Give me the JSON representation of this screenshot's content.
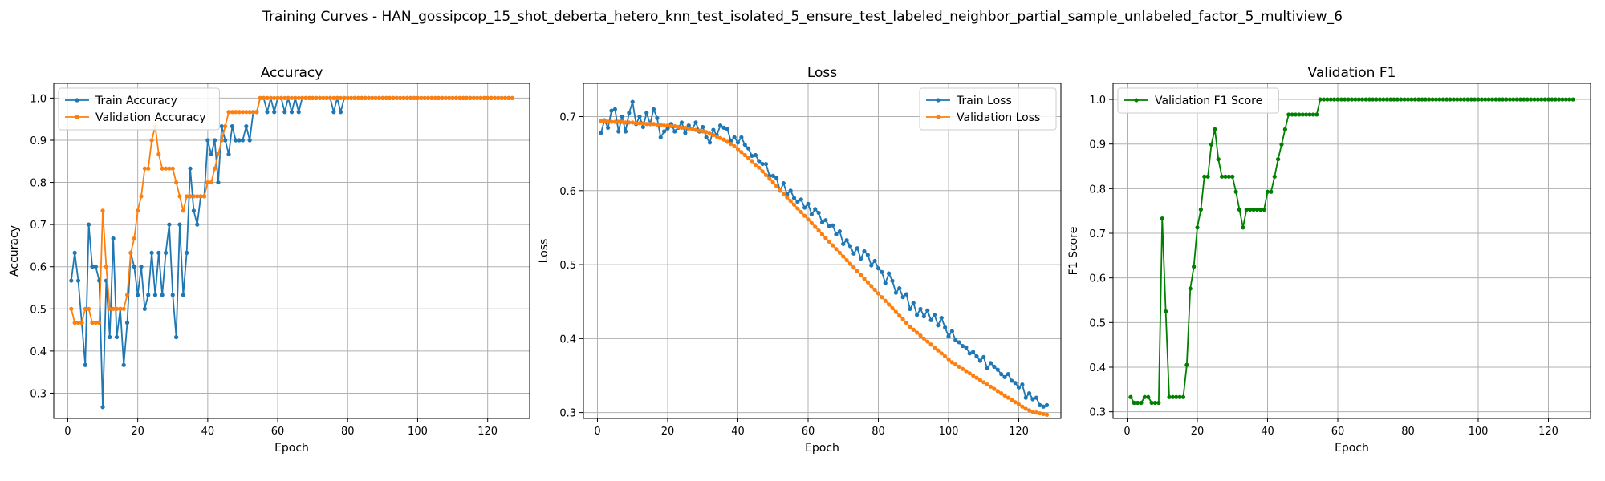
{
  "figure_title": "Training Curves - HAN_gossipcop_15_shot_deberta_hetero_knn_test_isolated_5_ensure_test_labeled_neighbor_partial_sample_unlabeled_factor_5_multiview_6",
  "colors": {
    "train": "#1f77b4",
    "validation": "#ff7f0e",
    "f1": "#008000",
    "grid": "#b0b0b0"
  },
  "chart_data": [
    {
      "type": "line",
      "title": "Accuracy",
      "xlabel": "Epoch",
      "ylabel": "Accuracy",
      "xlim": [
        -4,
        132
      ],
      "ylim": [
        0.24,
        1.035
      ],
      "xticks": [
        0,
        20,
        40,
        60,
        80,
        100,
        120
      ],
      "yticks": [
        0.3,
        0.4,
        0.5,
        0.6,
        0.7,
        0.8,
        0.9,
        1.0
      ],
      "yfmt": 1,
      "grid": true,
      "legend_position": "upper-left",
      "series": [
        {
          "name": "Train Accuracy",
          "color": "#1f77b4",
          "x_start": 1,
          "values": [
            0.567,
            0.633,
            0.567,
            0.467,
            0.367,
            0.7,
            0.6,
            0.6,
            0.567,
            0.267,
            0.567,
            0.433,
            0.667,
            0.433,
            0.5,
            0.367,
            0.467,
            0.633,
            0.6,
            0.533,
            0.6,
            0.5,
            0.533,
            0.633,
            0.533,
            0.633,
            0.533,
            0.633,
            0.7,
            0.533,
            0.433,
            0.7,
            0.533,
            0.633,
            0.833,
            0.733,
            0.7,
            0.767,
            0.767,
            0.9,
            0.867,
            0.9,
            0.8,
            0.933,
            0.9,
            0.867,
            0.933,
            0.9,
            0.9,
            0.9,
            0.933,
            0.9,
            0.967,
            0.967,
            1.0,
            1.0,
            0.967,
            1.0,
            0.967,
            1.0,
            1.0,
            0.967,
            1.0,
            0.967,
            1.0,
            0.967,
            1.0,
            1.0,
            1.0,
            1.0,
            1.0,
            1.0,
            1.0,
            1.0,
            1.0,
            0.967,
            1.0,
            0.967,
            1.0,
            1.0,
            1.0,
            1.0,
            1.0,
            1.0,
            1.0,
            1.0,
            1.0,
            1.0,
            1.0,
            1.0,
            1.0,
            1.0,
            1.0,
            1.0,
            1.0,
            1.0,
            1.0,
            1.0,
            1.0,
            1.0,
            1.0,
            1.0,
            1.0,
            1.0,
            1.0,
            1.0,
            1.0,
            1.0,
            1.0,
            1.0,
            1.0,
            1.0,
            1.0,
            1.0,
            1.0,
            1.0,
            1.0,
            1.0,
            1.0,
            1.0,
            1.0,
            1.0,
            1.0,
            1.0,
            1.0,
            1.0,
            1.0
          ]
        },
        {
          "name": "Validation Accuracy",
          "color": "#ff7f0e",
          "x_start": 1,
          "values": [
            0.5,
            0.467,
            0.467,
            0.467,
            0.5,
            0.5,
            0.467,
            0.467,
            0.467,
            0.733,
            0.6,
            0.5,
            0.5,
            0.5,
            0.5,
            0.5,
            0.533,
            0.633,
            0.667,
            0.733,
            0.767,
            0.833,
            0.833,
            0.9,
            0.933,
            0.867,
            0.833,
            0.833,
            0.833,
            0.833,
            0.8,
            0.767,
            0.733,
            0.767,
            0.767,
            0.767,
            0.767,
            0.767,
            0.767,
            0.8,
            0.8,
            0.833,
            0.867,
            0.9,
            0.933,
            0.967,
            0.967,
            0.967,
            0.967,
            0.967,
            0.967,
            0.967,
            0.967,
            0.967,
            1.0,
            1.0,
            1.0,
            1.0,
            1.0,
            1.0,
            1.0,
            1.0,
            1.0,
            1.0,
            1.0,
            1.0,
            1.0,
            1.0,
            1.0,
            1.0,
            1.0,
            1.0,
            1.0,
            1.0,
            1.0,
            1.0,
            1.0,
            1.0,
            1.0,
            1.0,
            1.0,
            1.0,
            1.0,
            1.0,
            1.0,
            1.0,
            1.0,
            1.0,
            1.0,
            1.0,
            1.0,
            1.0,
            1.0,
            1.0,
            1.0,
            1.0,
            1.0,
            1.0,
            1.0,
            1.0,
            1.0,
            1.0,
            1.0,
            1.0,
            1.0,
            1.0,
            1.0,
            1.0,
            1.0,
            1.0,
            1.0,
            1.0,
            1.0,
            1.0,
            1.0,
            1.0,
            1.0,
            1.0,
            1.0,
            1.0,
            1.0,
            1.0,
            1.0,
            1.0,
            1.0,
            1.0,
            1.0
          ]
        }
      ]
    },
    {
      "type": "line",
      "title": "Loss",
      "xlabel": "Epoch",
      "ylabel": "Loss",
      "xlim": [
        -4,
        132
      ],
      "ylim": [
        0.292,
        0.745
      ],
      "xticks": [
        0,
        20,
        40,
        60,
        80,
        100,
        120
      ],
      "yticks": [
        0.3,
        0.4,
        0.5,
        0.6,
        0.7
      ],
      "yfmt": 1,
      "grid": true,
      "legend_position": "upper-right",
      "series": [
        {
          "name": "Train Loss",
          "color": "#1f77b4",
          "x_start": 1,
          "values": [
            0.678,
            0.695,
            0.685,
            0.708,
            0.71,
            0.68,
            0.7,
            0.68,
            0.705,
            0.72,
            0.69,
            0.7,
            0.686,
            0.705,
            0.69,
            0.71,
            0.698,
            0.672,
            0.68,
            0.684,
            0.69,
            0.68,
            0.685,
            0.692,
            0.678,
            0.688,
            0.683,
            0.692,
            0.68,
            0.686,
            0.672,
            0.665,
            0.682,
            0.675,
            0.688,
            0.685,
            0.683,
            0.667,
            0.672,
            0.665,
            0.672,
            0.662,
            0.657,
            0.647,
            0.648,
            0.64,
            0.636,
            0.636,
            0.62,
            0.62,
            0.617,
            0.6,
            0.61,
            0.595,
            0.6,
            0.59,
            0.585,
            0.588,
            0.577,
            0.582,
            0.568,
            0.575,
            0.57,
            0.557,
            0.56,
            0.552,
            0.553,
            0.541,
            0.545,
            0.528,
            0.533,
            0.525,
            0.515,
            0.522,
            0.508,
            0.518,
            0.513,
            0.499,
            0.505,
            0.495,
            0.49,
            0.475,
            0.488,
            0.478,
            0.462,
            0.468,
            0.456,
            0.46,
            0.44,
            0.448,
            0.432,
            0.44,
            0.43,
            0.438,
            0.425,
            0.432,
            0.418,
            0.428,
            0.415,
            0.403,
            0.41,
            0.398,
            0.395,
            0.39,
            0.388,
            0.38,
            0.382,
            0.376,
            0.37,
            0.375,
            0.36,
            0.367,
            0.362,
            0.358,
            0.352,
            0.348,
            0.352,
            0.343,
            0.34,
            0.334,
            0.338,
            0.32,
            0.326,
            0.318,
            0.32,
            0.31,
            0.308,
            0.31
          ]
        },
        {
          "name": "Validation Loss",
          "color": "#ff7f0e",
          "x_start": 1,
          "values": [
            0.694,
            0.694,
            0.693,
            0.693,
            0.693,
            0.693,
            0.693,
            0.692,
            0.692,
            0.692,
            0.691,
            0.691,
            0.691,
            0.69,
            0.69,
            0.69,
            0.689,
            0.689,
            0.688,
            0.688,
            0.687,
            0.687,
            0.686,
            0.685,
            0.685,
            0.684,
            0.683,
            0.682,
            0.681,
            0.68,
            0.679,
            0.677,
            0.675,
            0.673,
            0.671,
            0.669,
            0.666,
            0.663,
            0.66,
            0.656,
            0.652,
            0.648,
            0.644,
            0.64,
            0.635,
            0.631,
            0.626,
            0.621,
            0.616,
            0.611,
            0.606,
            0.601,
            0.596,
            0.591,
            0.586,
            0.581,
            0.576,
            0.571,
            0.566,
            0.561,
            0.556,
            0.551,
            0.546,
            0.541,
            0.536,
            0.531,
            0.526,
            0.521,
            0.516,
            0.511,
            0.506,
            0.501,
            0.496,
            0.491,
            0.486,
            0.481,
            0.476,
            0.471,
            0.466,
            0.461,
            0.456,
            0.451,
            0.446,
            0.441,
            0.436,
            0.431,
            0.426,
            0.421,
            0.416,
            0.412,
            0.408,
            0.404,
            0.4,
            0.396,
            0.392,
            0.388,
            0.384,
            0.38,
            0.376,
            0.372,
            0.368,
            0.365,
            0.362,
            0.359,
            0.356,
            0.353,
            0.35,
            0.347,
            0.344,
            0.341,
            0.338,
            0.335,
            0.332,
            0.329,
            0.326,
            0.323,
            0.32,
            0.317,
            0.314,
            0.311,
            0.308,
            0.305,
            0.303,
            0.301,
            0.3,
            0.299,
            0.298,
            0.297
          ]
        }
      ]
    },
    {
      "type": "line",
      "title": "Validation F1",
      "xlabel": "Epoch",
      "ylabel": "F1 Score",
      "xlim": [
        -4,
        132
      ],
      "ylim": [
        0.285,
        1.036
      ],
      "xticks": [
        0,
        20,
        40,
        60,
        80,
        100,
        120
      ],
      "yticks": [
        0.3,
        0.4,
        0.5,
        0.6,
        0.7,
        0.8,
        0.9,
        1.0
      ],
      "yfmt": 1,
      "grid": true,
      "legend_position": "upper-left",
      "series": [
        {
          "name": "Validation F1 Score",
          "color": "#008000",
          "x_start": 1,
          "values": [
            0.333,
            0.32,
            0.32,
            0.32,
            0.333,
            0.333,
            0.32,
            0.32,
            0.32,
            0.733,
            0.525,
            0.333,
            0.333,
            0.333,
            0.333,
            0.333,
            0.405,
            0.576,
            0.625,
            0.713,
            0.753,
            0.827,
            0.827,
            0.899,
            0.933,
            0.866,
            0.827,
            0.827,
            0.827,
            0.827,
            0.793,
            0.753,
            0.713,
            0.753,
            0.753,
            0.753,
            0.753,
            0.753,
            0.753,
            0.793,
            0.793,
            0.827,
            0.866,
            0.899,
            0.933,
            0.966,
            0.966,
            0.966,
            0.966,
            0.966,
            0.966,
            0.966,
            0.966,
            0.966,
            1.0,
            1.0,
            1.0,
            1.0,
            1.0,
            1.0,
            1.0,
            1.0,
            1.0,
            1.0,
            1.0,
            1.0,
            1.0,
            1.0,
            1.0,
            1.0,
            1.0,
            1.0,
            1.0,
            1.0,
            1.0,
            1.0,
            1.0,
            1.0,
            1.0,
            1.0,
            1.0,
            1.0,
            1.0,
            1.0,
            1.0,
            1.0,
            1.0,
            1.0,
            1.0,
            1.0,
            1.0,
            1.0,
            1.0,
            1.0,
            1.0,
            1.0,
            1.0,
            1.0,
            1.0,
            1.0,
            1.0,
            1.0,
            1.0,
            1.0,
            1.0,
            1.0,
            1.0,
            1.0,
            1.0,
            1.0,
            1.0,
            1.0,
            1.0,
            1.0,
            1.0,
            1.0,
            1.0,
            1.0,
            1.0,
            1.0,
            1.0,
            1.0,
            1.0,
            1.0,
            1.0,
            1.0,
            1.0
          ]
        }
      ]
    }
  ]
}
